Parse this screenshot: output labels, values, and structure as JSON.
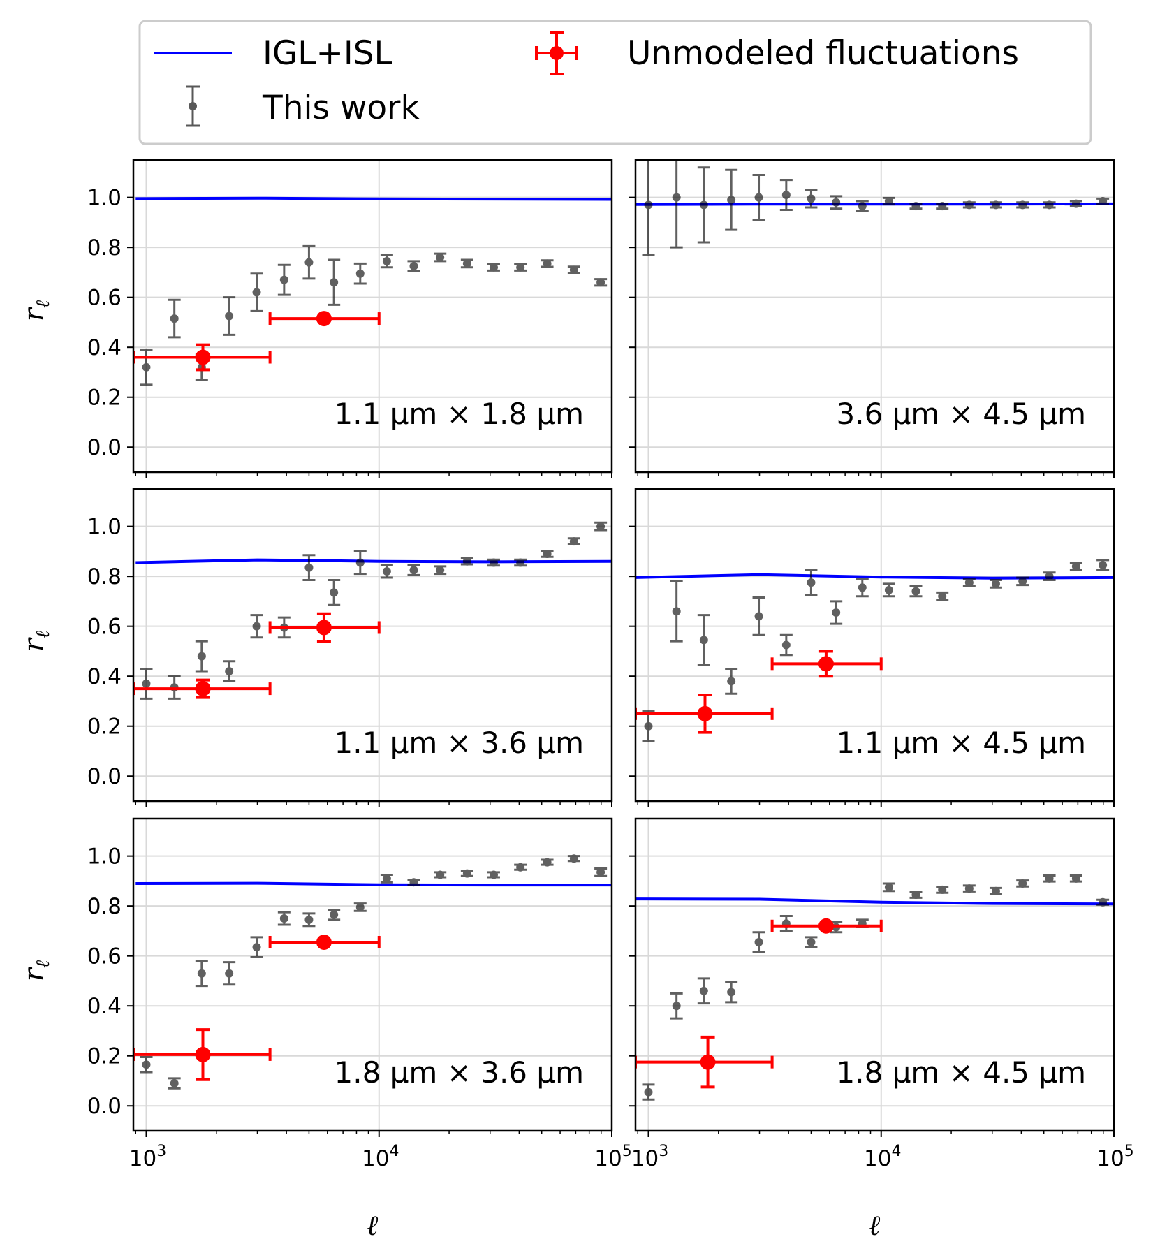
{
  "chart_data": {
    "type": "scatter",
    "legend": {
      "placement": "top",
      "entries": [
        {
          "key": "model",
          "label": "IGL+ISL",
          "color": "#0000ff",
          "marker": "line"
        },
        {
          "key": "unmodeled",
          "label": "Unmodeled fluctuations",
          "color": "#ff0000",
          "marker": "errorbar-dot"
        },
        {
          "key": "thiswork",
          "label": "This work",
          "color": "#333333",
          "marker": "errorbar-dot"
        }
      ]
    },
    "x_axis": {
      "scale": "log",
      "range": [
        880,
        100000
      ],
      "tick_values": [
        1000,
        10000,
        100000
      ],
      "tick_labels": [
        "10",
        "10",
        "10"
      ],
      "tick_exponents": [
        "3",
        "4",
        "5"
      ],
      "label": "ℓ"
    },
    "y_axis": {
      "range": [
        -0.1,
        1.15
      ],
      "tick_values": [
        0.0,
        0.2,
        0.4,
        0.6,
        0.8,
        1.0
      ],
      "tick_labels": [
        "0.0",
        "0.2",
        "0.4",
        "0.6",
        "0.8",
        "1.0"
      ],
      "label_base": "r",
      "label_sub": "ℓ"
    },
    "grid": true,
    "ell": [
      1000,
      1320,
      1730,
      2270,
      2980,
      3910,
      5000,
      6400,
      8300,
      10800,
      14100,
      18300,
      23900,
      31100,
      40500,
      52800,
      68800,
      89600
    ],
    "panels": [
      {
        "label": "1.1 μm × 1.8 μm",
        "model": {
          "x": [
            900,
            3000,
            10000,
            30000,
            100000
          ],
          "y": [
            0.995,
            0.997,
            0.994,
            0.993,
            0.992
          ]
        },
        "thiswork": {
          "y": [
            0.32,
            0.515,
            0.32,
            0.525,
            0.62,
            0.67,
            0.74,
            0.66,
            0.695,
            0.745,
            0.725,
            0.76,
            0.735,
            0.72,
            0.72,
            0.735,
            0.71,
            0.66
          ],
          "err": [
            0.07,
            0.075,
            0.05,
            0.075,
            0.075,
            0.06,
            0.065,
            0.09,
            0.04,
            0.025,
            0.02,
            0.015,
            0.015,
            0.013,
            0.013,
            0.013,
            0.013,
            0.013
          ]
        },
        "unmodeled": [
          {
            "x": 1750,
            "xmin": 880,
            "xmax": 3400,
            "y": 0.36,
            "err": 0.05
          },
          {
            "x": 5800,
            "xmin": 3400,
            "xmax": 10000,
            "y": 0.515,
            "err": 0.0
          }
        ]
      },
      {
        "label": "3.6 μm × 4.5 μm",
        "model": {
          "x": [
            880,
            3000,
            10000,
            30000,
            100000
          ],
          "y": [
            0.972,
            0.973,
            0.973,
            0.973,
            0.974
          ]
        },
        "thiswork": {
          "y": [
            0.97,
            1.0,
            0.97,
            0.99,
            1.0,
            1.01,
            0.995,
            0.98,
            0.965,
            0.985,
            0.965,
            0.965,
            0.97,
            0.97,
            0.97,
            0.97,
            0.975,
            0.985
          ],
          "err": [
            0.2,
            0.2,
            0.15,
            0.12,
            0.09,
            0.06,
            0.035,
            0.025,
            0.02,
            0.013,
            0.01,
            0.01,
            0.01,
            0.01,
            0.01,
            0.01,
            0.01,
            0.01
          ]
        },
        "unmodeled": []
      },
      {
        "label": "1.1 μm × 3.6 μm",
        "model": {
          "x": [
            900,
            3000,
            10000,
            30000,
            100000
          ],
          "y": [
            0.855,
            0.866,
            0.86,
            0.858,
            0.86
          ]
        },
        "thiswork": {
          "y": [
            0.37,
            0.355,
            0.48,
            0.42,
            0.6,
            0.595,
            0.835,
            0.735,
            0.855,
            0.82,
            0.825,
            0.825,
            0.86,
            0.855,
            0.855,
            0.89,
            0.94,
            1.0
          ],
          "err": [
            0.06,
            0.045,
            0.06,
            0.04,
            0.045,
            0.04,
            0.05,
            0.05,
            0.045,
            0.025,
            0.02,
            0.015,
            0.012,
            0.012,
            0.012,
            0.012,
            0.012,
            0.015
          ]
        },
        "unmodeled": [
          {
            "x": 1750,
            "xmin": 880,
            "xmax": 3400,
            "y": 0.35,
            "err": 0.035
          },
          {
            "x": 5800,
            "xmin": 3400,
            "xmax": 10000,
            "y": 0.595,
            "err": 0.055
          }
        ]
      },
      {
        "label": "1.1 μm × 4.5 μm",
        "model": {
          "x": [
            880,
            3000,
            10000,
            30000,
            100000
          ],
          "y": [
            0.795,
            0.807,
            0.797,
            0.793,
            0.795
          ]
        },
        "thiswork": {
          "y": [
            0.2,
            0.66,
            0.545,
            0.38,
            0.64,
            0.525,
            0.775,
            0.655,
            0.755,
            0.745,
            0.74,
            0.72,
            0.775,
            0.77,
            0.78,
            0.8,
            0.84,
            0.845
          ],
          "err": [
            0.06,
            0.12,
            0.1,
            0.05,
            0.075,
            0.04,
            0.05,
            0.045,
            0.035,
            0.025,
            0.02,
            0.015,
            0.015,
            0.015,
            0.015,
            0.015,
            0.015,
            0.02
          ]
        },
        "unmodeled": [
          {
            "x": 1750,
            "xmin": 880,
            "xmax": 3400,
            "y": 0.25,
            "err": 0.075
          },
          {
            "x": 5800,
            "xmin": 3400,
            "xmax": 10000,
            "y": 0.45,
            "err": 0.05
          }
        ]
      },
      {
        "label": "1.8 μm × 3.6 μm",
        "model": {
          "x": [
            900,
            3000,
            10000,
            30000,
            100000
          ],
          "y": [
            0.89,
            0.891,
            0.885,
            0.884,
            0.884
          ]
        },
        "thiswork": {
          "y": [
            0.165,
            0.09,
            0.53,
            0.53,
            0.635,
            0.75,
            0.745,
            0.765,
            0.795,
            0.91,
            0.895,
            0.925,
            0.93,
            0.925,
            0.955,
            0.975,
            0.99,
            0.935
          ],
          "err": [
            0.03,
            0.02,
            0.05,
            0.045,
            0.04,
            0.025,
            0.025,
            0.02,
            0.015,
            0.015,
            0.01,
            0.01,
            0.01,
            0.01,
            0.01,
            0.01,
            0.01,
            0.015
          ]
        },
        "unmodeled": [
          {
            "x": 1750,
            "xmin": 880,
            "xmax": 3400,
            "y": 0.205,
            "err": 0.1
          },
          {
            "x": 5800,
            "xmin": 3400,
            "xmax": 10000,
            "y": 0.655,
            "err": 0.0
          }
        ]
      },
      {
        "label": "1.8 μm × 4.5 μm",
        "model": {
          "x": [
            880,
            3000,
            10000,
            30000,
            100000
          ],
          "y": [
            0.828,
            0.827,
            0.815,
            0.81,
            0.808
          ]
        },
        "thiswork": {
          "y": [
            0.055,
            0.4,
            0.46,
            0.455,
            0.655,
            0.73,
            0.655,
            0.715,
            0.73,
            0.875,
            0.845,
            0.865,
            0.87,
            0.86,
            0.89,
            0.91,
            0.91,
            0.815
          ],
          "err": [
            0.03,
            0.05,
            0.05,
            0.04,
            0.04,
            0.03,
            0.02,
            0.02,
            0.015,
            0.015,
            0.012,
            0.012,
            0.012,
            0.012,
            0.012,
            0.012,
            0.012,
            0.01
          ]
        },
        "unmodeled": [
          {
            "x": 1800,
            "xmin": 880,
            "xmax": 3400,
            "y": 0.175,
            "err": 0.1
          },
          {
            "x": 5800,
            "xmin": 3400,
            "xmax": 10000,
            "y": 0.72,
            "err": 0.0
          }
        ]
      }
    ]
  }
}
